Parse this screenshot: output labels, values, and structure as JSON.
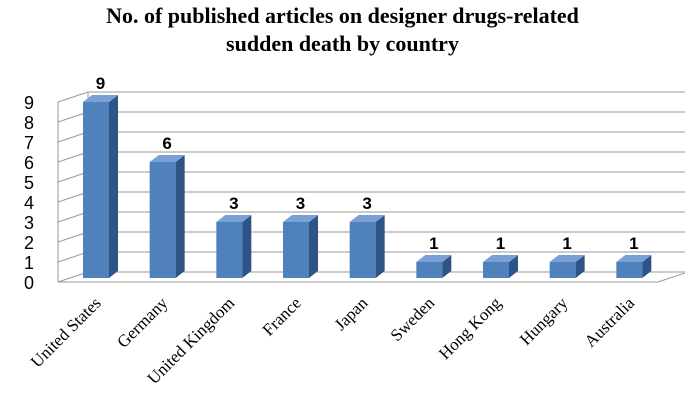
{
  "chart_data": {
    "type": "bar",
    "title_lines": [
      "No. of published articles on designer drugs-related",
      "sudden death by country"
    ],
    "categories": [
      "United States",
      "Germany",
      "United Kingdom",
      "France",
      "Japan",
      "Sweden",
      "Hong Kong",
      "Hungary",
      "Australia"
    ],
    "values": [
      9,
      6,
      3,
      3,
      3,
      1,
      1,
      1,
      1
    ],
    "data_labels": [
      "9",
      "6",
      "3",
      "3",
      "3",
      "1",
      "1",
      "1",
      "1"
    ],
    "yticks": [
      "0",
      "1",
      "2",
      "3",
      "4",
      "5",
      "6",
      "7",
      "8",
      "9"
    ],
    "ylim": [
      0,
      9
    ],
    "grid": true,
    "bar_color": "#4F81BD",
    "bar_side_color": "#2E5486",
    "bar_top_color": "#7BA0D6"
  }
}
